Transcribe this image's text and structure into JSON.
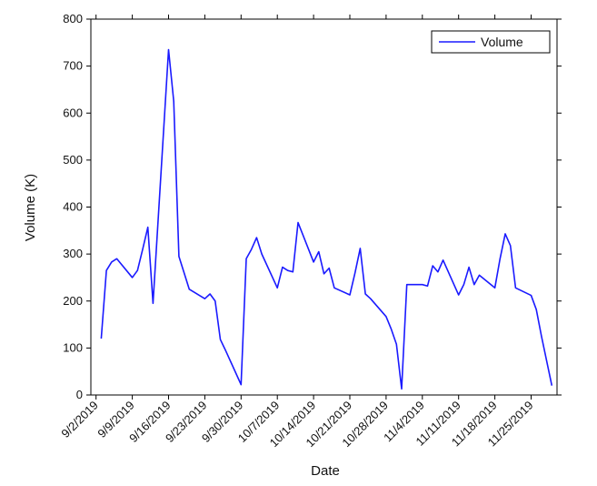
{
  "chart_data": {
    "type": "line",
    "x_label": "Date",
    "y_label": "Volume (K)",
    "x": [
      "9/3/2019",
      "9/4/2019",
      "9/5/2019",
      "9/6/2019",
      "9/9/2019",
      "9/10/2019",
      "9/11/2019",
      "9/12/2019",
      "9/13/2019",
      "9/16/2019",
      "9/17/2019",
      "9/18/2019",
      "9/19/2019",
      "9/20/2019",
      "9/23/2019",
      "9/24/2019",
      "9/25/2019",
      "9/26/2019",
      "9/27/2019",
      "9/30/2019",
      "10/1/2019",
      "10/2/2019",
      "10/3/2019",
      "10/4/2019",
      "10/7/2019",
      "10/8/2019",
      "10/9/2019",
      "10/10/2019",
      "10/11/2019",
      "10/14/2019",
      "10/15/2019",
      "10/16/2019",
      "10/17/2019",
      "10/18/2019",
      "10/21/2019",
      "10/22/2019",
      "10/23/2019",
      "10/24/2019",
      "10/25/2019",
      "10/28/2019",
      "10/29/2019",
      "10/30/2019",
      "10/31/2019",
      "11/1/2019",
      "11/4/2019",
      "11/5/2019",
      "11/6/2019",
      "11/7/2019",
      "11/8/2019",
      "11/11/2019",
      "11/12/2019",
      "11/13/2019",
      "11/14/2019",
      "11/15/2019",
      "11/18/2019",
      "11/19/2019",
      "11/20/2019",
      "11/21/2019",
      "11/22/2019",
      "11/25/2019",
      "11/26/2019",
      "11/27/2019",
      "11/29/2019"
    ],
    "series": [
      {
        "name": "Volume",
        "color": "#1a1aff",
        "values": [
          120,
          265,
          283,
          290,
          250,
          265,
          310,
          357,
          195,
          735,
          625,
          295,
          260,
          225,
          205,
          215,
          200,
          118,
          95,
          22,
          290,
          310,
          335,
          300,
          228,
          272,
          265,
          262,
          367,
          283,
          305,
          258,
          270,
          228,
          213,
          260,
          312,
          215,
          205,
          167,
          140,
          108,
          13,
          235,
          235,
          232,
          275,
          262,
          287,
          213,
          235,
          272,
          235,
          255,
          228,
          290,
          343,
          318,
          228,
          212,
          182,
          125,
          20
        ]
      }
    ],
    "xlim": [
      "9/1/2019",
      "11/30/2019"
    ],
    "xticks": [
      "9/2/2019",
      "9/9/2019",
      "9/16/2019",
      "9/23/2019",
      "9/30/2019",
      "10/7/2019",
      "10/14/2019",
      "10/21/2019",
      "10/28/2019",
      "11/4/2019",
      "11/11/2019",
      "11/18/2019",
      "11/25/2019"
    ],
    "ylim": [
      0,
      800
    ],
    "yticks": [
      0,
      100,
      200,
      300,
      400,
      500,
      600,
      700,
      800
    ],
    "grid": false,
    "legend": "upper right"
  }
}
